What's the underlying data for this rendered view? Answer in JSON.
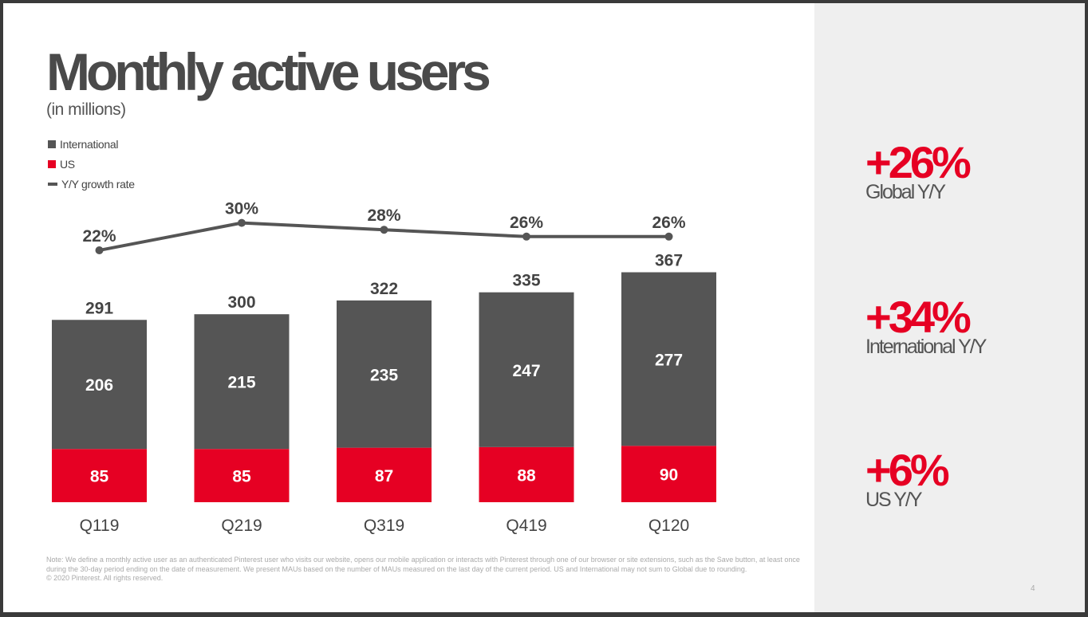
{
  "colors": {
    "international": "#555555",
    "us": "#e60023",
    "growth_line": "#555555",
    "kpi_value": "#e60023"
  },
  "chart_data": {
    "type": "bar",
    "stacked": true,
    "title": "Monthly active users",
    "subtitle": "(in millions)",
    "categories": [
      "Q119",
      "Q219",
      "Q319",
      "Q419",
      "Q120"
    ],
    "series": [
      {
        "name": "US",
        "values": [
          85,
          85,
          87,
          88,
          90
        ]
      },
      {
        "name": "International",
        "values": [
          206,
          215,
          235,
          247,
          277
        ]
      }
    ],
    "totals": [
      291,
      300,
      322,
      335,
      367
    ],
    "line_series": {
      "name": "Y/Y growth rate",
      "values": [
        22,
        30,
        28,
        26,
        26
      ],
      "suffix": "%"
    },
    "legend": [
      "International",
      "US",
      "Y/Y growth rate"
    ],
    "legend_position": "top-left",
    "grid": false
  },
  "kpis": [
    {
      "value": "+26%",
      "label": "Global Y/Y"
    },
    {
      "value": "+34%",
      "label": "International Y/Y"
    },
    {
      "value": "+6%",
      "label": "US Y/Y"
    }
  ],
  "footer": {
    "note": "Note: We define a monthly active user as an authenticated Pinterest user who visits our website, opens our mobile application or interacts with Pinterest through one of our browser or site extensions, such as the Save button, at least once during the 30-day period ending on the date of measurement. We present MAUs based on the number of MAUs measured on the last day of the current period. US and International may not sum to Global due to rounding.",
    "copyright": "© 2020 Pinterest. All rights reserved.",
    "page_number": "4"
  }
}
